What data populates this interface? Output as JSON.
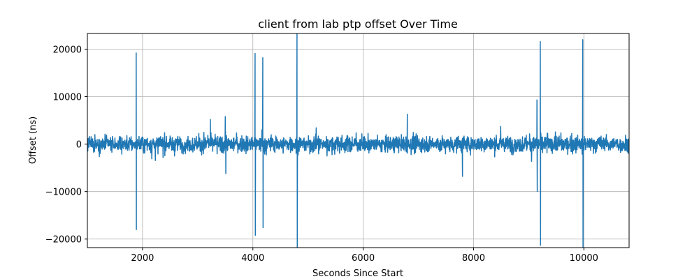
{
  "chart_data": {
    "type": "line",
    "title": "client from lab ptp offset Over Time",
    "xlabel": "Seconds Since Start",
    "ylabel": "Offset (ns)",
    "xlim": [
      1000,
      10820
    ],
    "ylim": [
      -21800,
      23300
    ],
    "xticks": [
      2000,
      4000,
      6000,
      8000,
      10000
    ],
    "yticks": [
      -20000,
      -10000,
      0,
      10000,
      20000
    ],
    "grid": true,
    "line_color": "#1f77b4",
    "noise": {
      "x_start": 1000,
      "x_end": 10820,
      "step": 4,
      "typical_amplitude": 1600,
      "mean": 0
    },
    "series": [
      {
        "values_note_points": true,
        "points": [
          [
            1885,
            19200
          ],
          [
            1888,
            -18000
          ],
          [
            3230,
            5200
          ],
          [
            3500,
            5800
          ],
          [
            3510,
            -6200
          ],
          [
            4040,
            19100
          ],
          [
            4045,
            -19200
          ],
          [
            4180,
            18200
          ],
          [
            4185,
            -17600
          ],
          [
            4800,
            23300
          ],
          [
            4805,
            -21800
          ],
          [
            6800,
            6300
          ],
          [
            7800,
            -6800
          ],
          [
            9150,
            9300
          ],
          [
            9155,
            -10000
          ],
          [
            9210,
            21600
          ],
          [
            9215,
            -21300
          ],
          [
            9980,
            22000
          ],
          [
            9985,
            -21800
          ]
        ]
      }
    ]
  }
}
